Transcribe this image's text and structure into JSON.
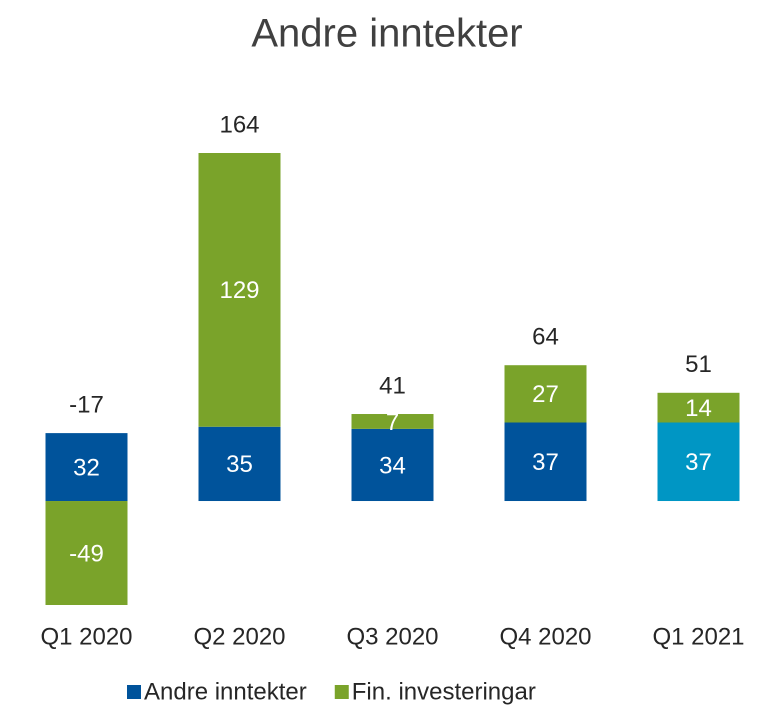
{
  "chart_data": {
    "type": "stacked_bar",
    "title": "Andre inntekter",
    "categories": [
      "Q1 2020",
      "Q2 2020",
      "Q3 2020",
      "Q4 2020",
      "Q1 2021"
    ],
    "series": [
      {
        "name": "Andre inntekter",
        "color": "#00539b",
        "colors": [
          "#00539b",
          "#00539b",
          "#00539b",
          "#00539b",
          "#0096c4"
        ],
        "values": [
          32,
          35,
          34,
          37,
          37
        ]
      },
      {
        "name": "Fin. investeringar",
        "color": "#7aa32a",
        "values": [
          -49,
          129,
          7,
          27,
          14
        ]
      }
    ],
    "totals": [
      -17,
      164,
      41,
      64,
      51
    ]
  }
}
